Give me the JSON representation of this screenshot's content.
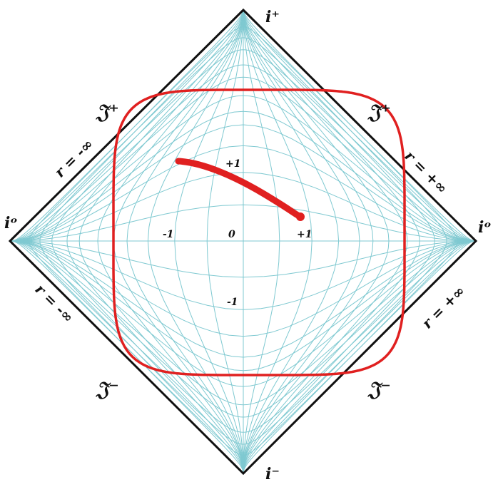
{
  "colors": {
    "grid": "#7fc9d1",
    "boundary": "#111111",
    "curve": "#e02020",
    "worldline": "#e02020",
    "text": "#111111"
  },
  "labels": {
    "i_plus": "i⁺",
    "i_minus": "i⁻",
    "i_zero_left": "iᵒ",
    "i_zero_right": "iᵒ",
    "scri_plus": "𝔍⁺",
    "scri_minus": "𝔍⁻",
    "r_minus_inf": "r = -∞",
    "r_plus_inf": "r = +∞"
  },
  "axis_ticks": {
    "x_neg": "-1",
    "origin": "0",
    "x_pos": "+1",
    "y_pos": "+1",
    "y_neg": "-1"
  }
}
